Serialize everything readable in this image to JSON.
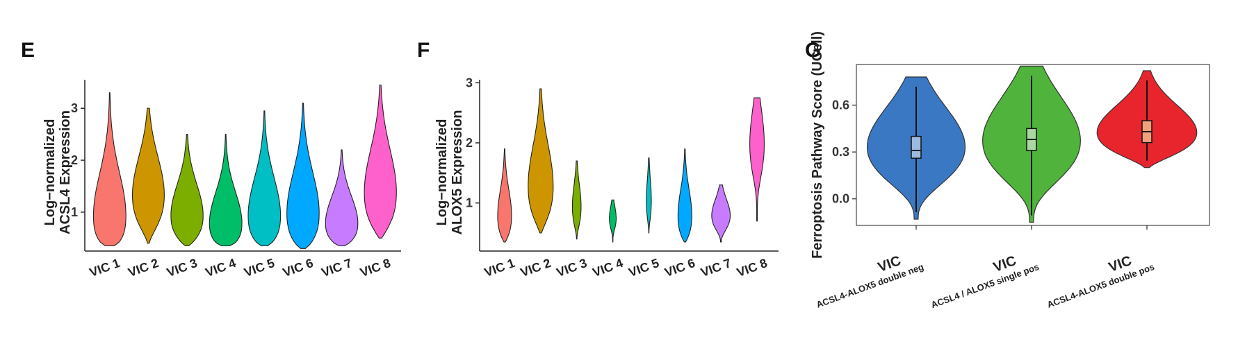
{
  "chart_data": [
    {
      "panel": "E",
      "type": "violin",
      "ylabel": "Log−normalized\nACSL4 Expression",
      "ylim": [
        0.25,
        3.55
      ],
      "yticks": [
        1,
        2,
        3
      ],
      "categories": [
        "VIC 1",
        "VIC 2",
        "VIC 3",
        "VIC 4",
        "VIC 5",
        "VIC 6",
        "VIC 7",
        "VIC 8"
      ],
      "colors": [
        "#F8766D",
        "#CD9600",
        "#7CAE00",
        "#00BE67",
        "#00BFC4",
        "#00A9FF",
        "#C77CFF",
        "#FF61CC"
      ],
      "values": [
        {
          "min": 0.35,
          "max": 3.3,
          "peak": 0.95
        },
        {
          "min": 0.4,
          "max": 3.0,
          "peak": 1.35
        },
        {
          "min": 0.35,
          "max": 2.5,
          "peak": 0.95
        },
        {
          "min": 0.35,
          "max": 2.5,
          "peak": 0.8
        },
        {
          "min": 0.35,
          "max": 2.95,
          "peak": 0.95
        },
        {
          "min": 0.3,
          "max": 3.1,
          "peak": 1.0
        },
        {
          "min": 0.35,
          "max": 2.2,
          "peak": 0.8
        },
        {
          "min": 0.5,
          "max": 3.45,
          "peak": 1.4
        }
      ]
    },
    {
      "panel": "F",
      "type": "violin",
      "ylabel": "Log−normalized\nALOX5 Expression",
      "ylim": [
        0.2,
        3.05
      ],
      "yticks": [
        1,
        2,
        3
      ],
      "categories": [
        "VIC 1",
        "VIC 2",
        "VIC 3",
        "VIC 4",
        "VIC 5",
        "VIC 6",
        "VIC 7",
        "VIC 8"
      ],
      "colors": [
        "#F8766D",
        "#CD9600",
        "#7CAE00",
        "#00BE67",
        "#00BFC4",
        "#00A9FF",
        "#C77CFF",
        "#FF61CC"
      ],
      "values": [
        {
          "min": 0.35,
          "max": 1.9,
          "peak": 0.8
        },
        {
          "min": 0.5,
          "max": 2.9,
          "peak": 1.3
        },
        {
          "min": 0.4,
          "max": 1.7,
          "peak": 0.95
        },
        {
          "min": 0.35,
          "max": 1.05,
          "peak": 0.75
        },
        {
          "min": 0.5,
          "max": 1.75,
          "peak": 1.05
        },
        {
          "min": 0.35,
          "max": 1.9,
          "peak": 0.8
        },
        {
          "min": 0.35,
          "max": 1.3,
          "peak": 0.8
        },
        {
          "min": 0.7,
          "max": 2.75,
          "peak": 2.0
        }
      ]
    },
    {
      "panel": "G",
      "type": "violin",
      "ylabel": "Ferroptosis Pathway Score (UCell)",
      "ylim": [
        -0.17,
        0.86
      ],
      "yticks": [
        0.0,
        0.3,
        0.6
      ],
      "tick_labels": [
        "0.0",
        "0.3",
        "0.6"
      ],
      "categories": [
        {
          "main": "VIC",
          "sub": "ACSL4-ALOX5 double neg"
        },
        {
          "main": "VIC",
          "sub": "ACSL4 / ALOX5 single pos"
        },
        {
          "main": "VIC",
          "sub": "ACSL4-ALOX5 double pos"
        }
      ],
      "colors": [
        "#3A78C4",
        "#4FB33C",
        "#E8252D"
      ],
      "box_colors": [
        "#9CB9DE",
        "#A9D8A0",
        "#F2A07A"
      ],
      "values": [
        {
          "min": -0.13,
          "max": 0.78,
          "q1": 0.26,
          "median": 0.31,
          "q3": 0.4
        },
        {
          "min": -0.15,
          "max": 0.85,
          "q1": 0.31,
          "median": 0.38,
          "q3": 0.45
        },
        {
          "min": 0.2,
          "max": 0.82,
          "q1": 0.36,
          "median": 0.43,
          "q3": 0.5
        }
      ]
    }
  ]
}
